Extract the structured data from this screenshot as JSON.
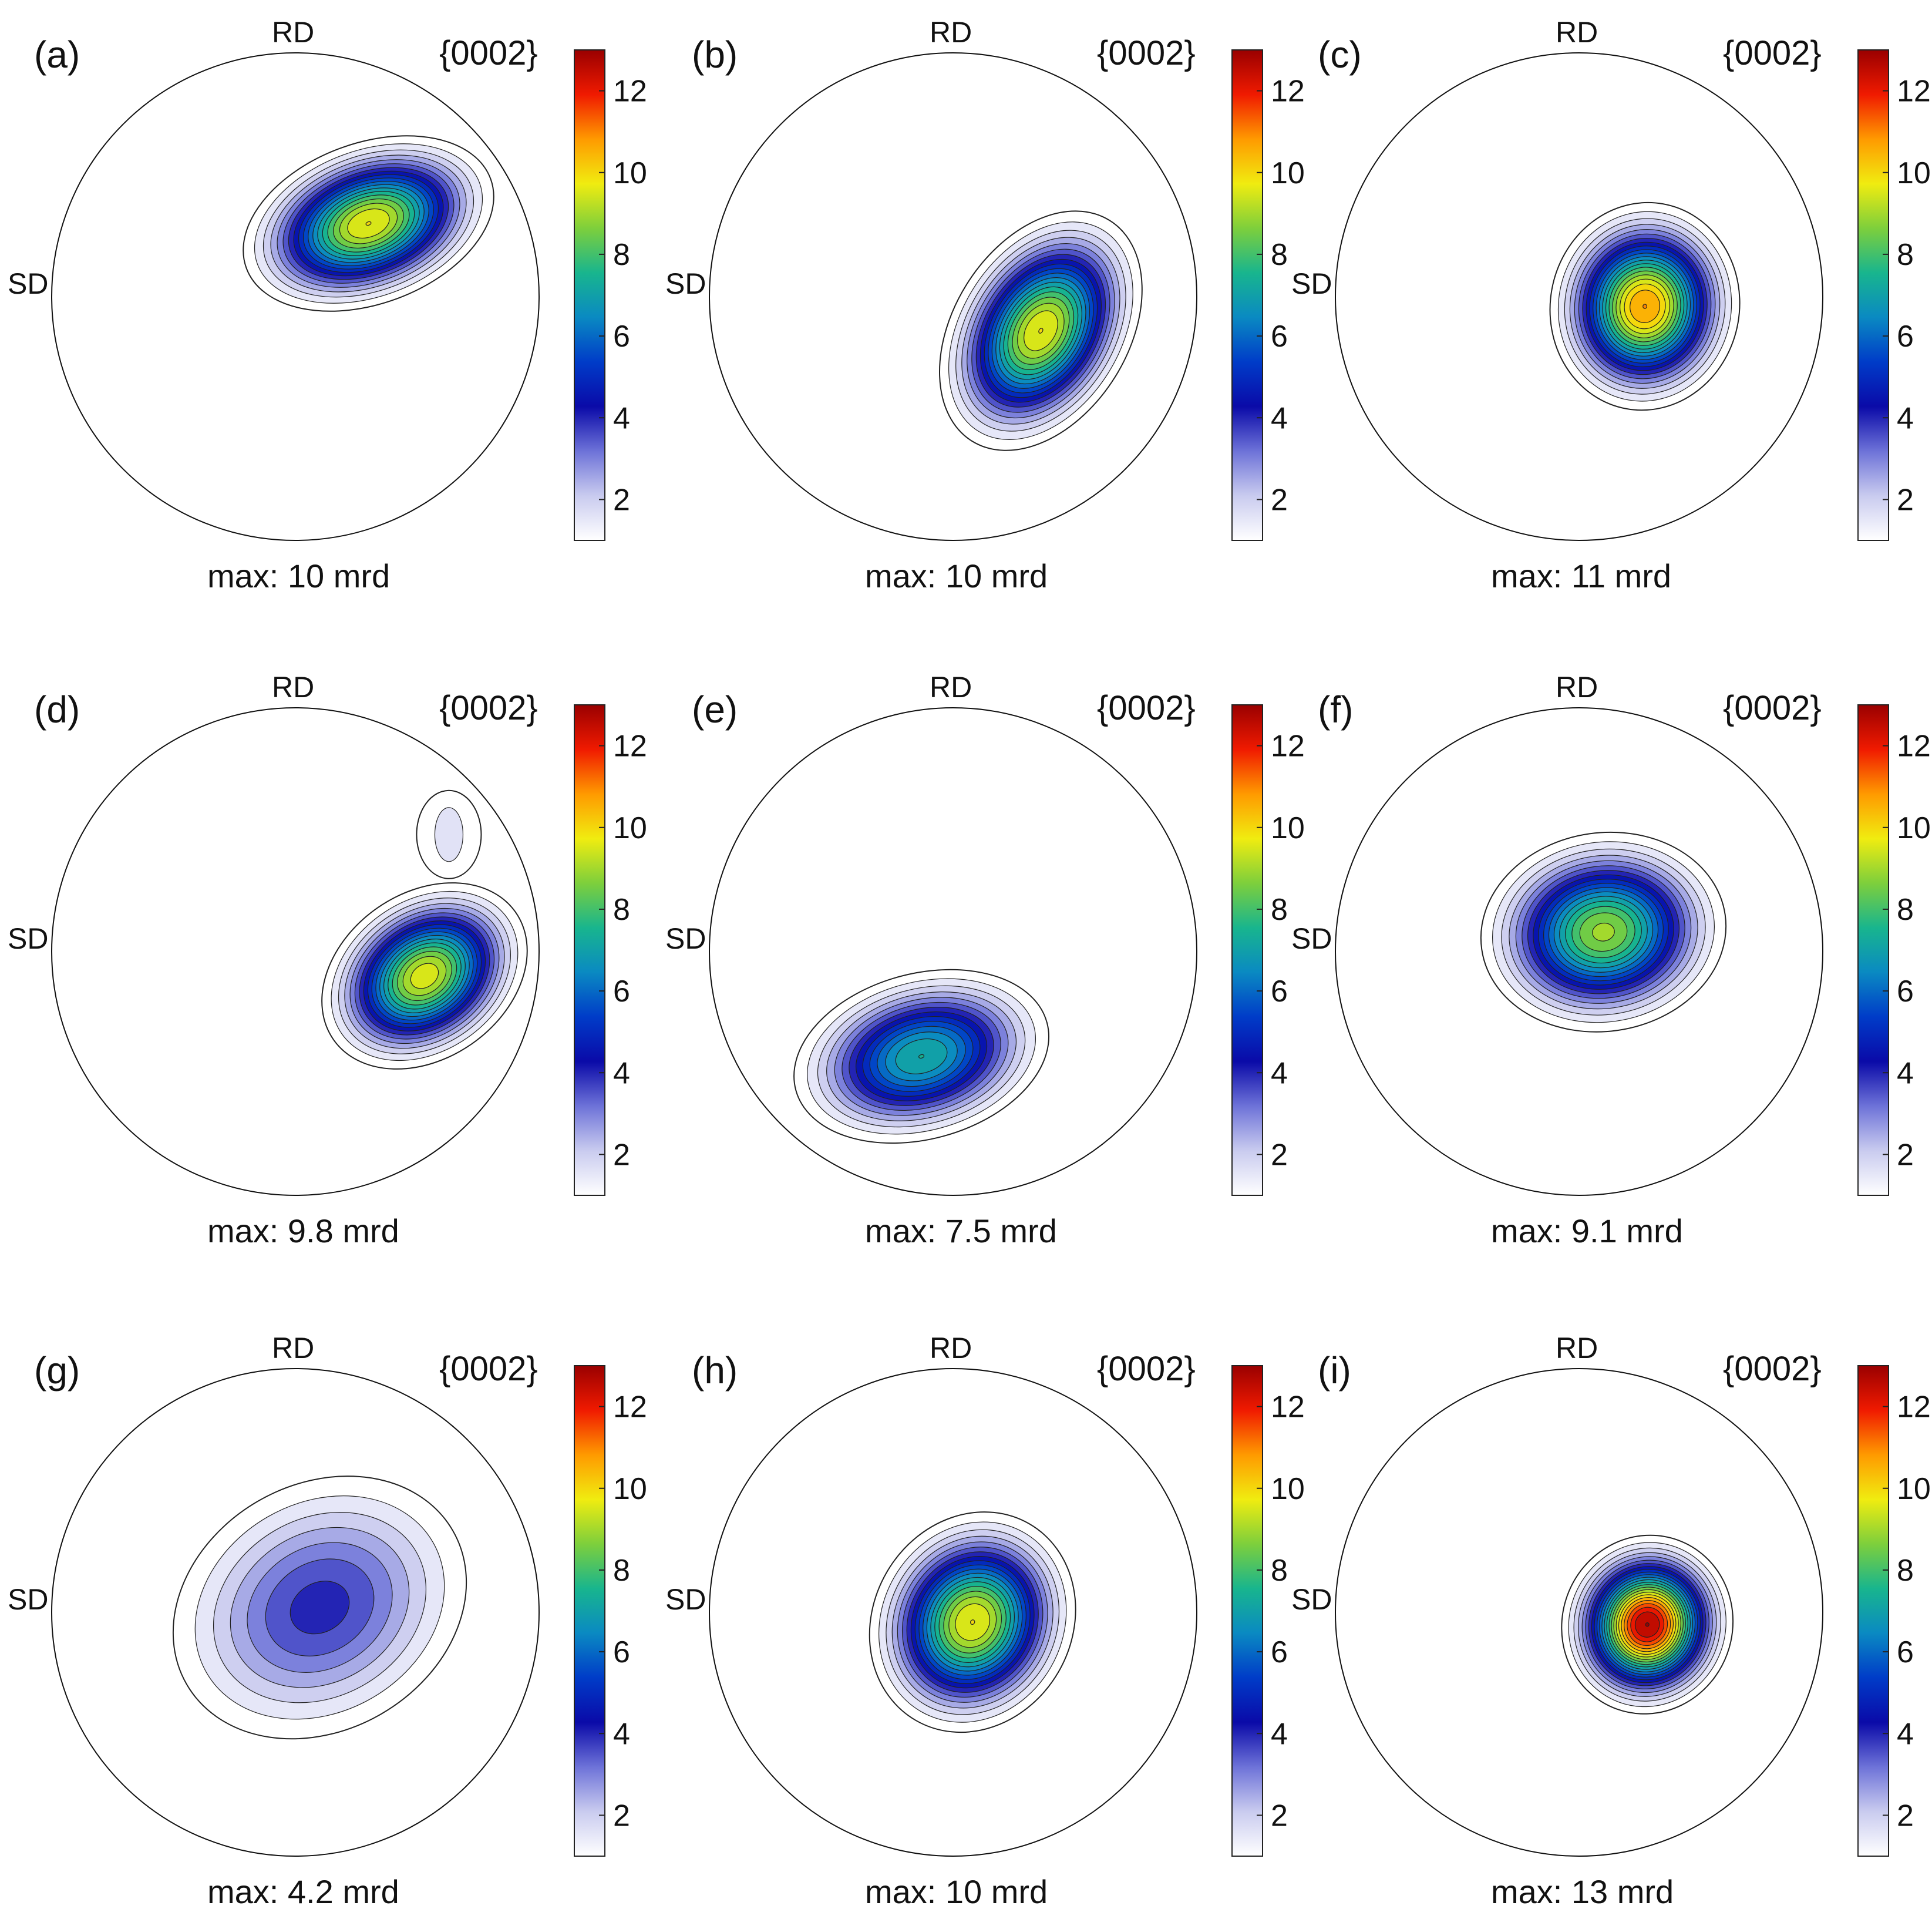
{
  "figure": {
    "colorbar_ticks": [
      "2",
      "4",
      "6",
      "8",
      "10",
      "12"
    ],
    "rd_label": "RD",
    "sd_label": "SD",
    "colormap": [
      "#ffffff",
      "#c9cbef",
      "#6d72d8",
      "#0a0aa8",
      "#003cc8",
      "#0a8ac2",
      "#18b58e",
      "#7dcf3c",
      "#f0ec10",
      "#ff9a00",
      "#f01a00",
      "#9a0000"
    ]
  },
  "chart_data": [
    {
      "type": "heatmap",
      "panel": "(a)",
      "pole_figure": "{0002}",
      "max_label": "max: 10 mrd",
      "max_mrd": 10,
      "colorbar_range": [
        1,
        13
      ],
      "peak": {
        "x": 0.3,
        "y": -0.3
      },
      "spread": {
        "major": 0.55,
        "minor": 0.34,
        "angle": -20
      }
    },
    {
      "type": "heatmap",
      "panel": "(b)",
      "pole_figure": "{0002}",
      "max_label": "max: 10 mrd",
      "max_mrd": 10,
      "colorbar_range": [
        1,
        13
      ],
      "peak": {
        "x": 0.36,
        "y": 0.14
      },
      "spread": {
        "major": 0.55,
        "minor": 0.37,
        "angle": -58
      }
    },
    {
      "type": "heatmap",
      "panel": "(c)",
      "pole_figure": "{0002}",
      "max_label": "max: 11 mrd",
      "max_mrd": 11,
      "colorbar_range": [
        1,
        13
      ],
      "peak": {
        "x": 0.27,
        "y": 0.04
      },
      "spread": {
        "major": 0.44,
        "minor": 0.4,
        "angle": -80
      }
    },
    {
      "type": "heatmap",
      "panel": "(d)",
      "pole_figure": "{0002}",
      "max_label": "max: 9.8 mrd",
      "max_mrd": 9.8,
      "colorbar_range": [
        1,
        13
      ],
      "peak": {
        "x": 0.53,
        "y": 0.1
      },
      "spread": {
        "major": 0.47,
        "minor": 0.35,
        "angle": -35
      },
      "secondary_peak": {
        "x": 0.63,
        "y": -0.48,
        "value": 1.6
      }
    },
    {
      "type": "heatmap",
      "panel": "(e)",
      "pole_figure": "{0002}",
      "max_label": "max: 7.5 mrd",
      "max_mrd": 7.5,
      "colorbar_range": [
        1,
        13
      ],
      "peak": {
        "x": -0.13,
        "y": 0.43
      },
      "spread": {
        "major": 0.55,
        "minor": 0.35,
        "angle": -15
      }
    },
    {
      "type": "heatmap",
      "panel": "(f)",
      "pole_figure": "{0002}",
      "max_label": "max: 9.1 mrd",
      "max_mrd": 9.1,
      "colorbar_range": [
        1,
        13
      ],
      "peak": {
        "x": 0.1,
        "y": -0.08
      },
      "spread": {
        "major": 0.52,
        "minor": 0.42,
        "angle": -8
      }
    },
    {
      "type": "heatmap",
      "panel": "(g)",
      "pole_figure": "{0002}",
      "max_label": "max: 4.2 mrd",
      "max_mrd": 4.2,
      "colorbar_range": [
        1,
        13
      ],
      "peak": {
        "x": 0.1,
        "y": -0.02
      },
      "spread": {
        "major": 0.65,
        "minor": 0.52,
        "angle": -30
      }
    },
    {
      "type": "heatmap",
      "panel": "(h)",
      "pole_figure": "{0002}",
      "max_label": "max: 10 mrd",
      "max_mrd": 10,
      "colorbar_range": [
        1,
        13
      ],
      "peak": {
        "x": 0.08,
        "y": 0.04
      },
      "spread": {
        "major": 0.48,
        "minor": 0.42,
        "angle": -60
      }
    },
    {
      "type": "heatmap",
      "panel": "(i)",
      "pole_figure": "{0002}",
      "max_label": "max: 13 mrd",
      "max_mrd": 13,
      "colorbar_range": [
        1,
        13
      ],
      "peak": {
        "x": 0.28,
        "y": 0.05
      },
      "spread": {
        "major": 0.38,
        "minor": 0.36,
        "angle": -70
      }
    }
  ]
}
